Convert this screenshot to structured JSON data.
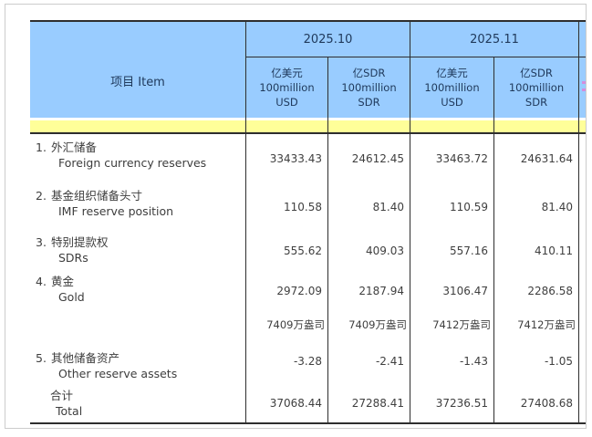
{
  "table": {
    "item_header": "项目  Item",
    "periods": [
      "2025.10",
      "2025.11"
    ],
    "units": {
      "usd_zh": "亿美元",
      "usd_scale": "100million",
      "usd_code": "USD",
      "sdr_zh": "亿SDR",
      "sdr_scale": "100million",
      "sdr_code": "SDR"
    },
    "rows": [
      {
        "no": "1.",
        "zh": "外汇储备",
        "en": "Foreign currency reserves",
        "v": [
          "33433.43",
          "24612.45",
          "33463.72",
          "24631.64"
        ]
      },
      {
        "no": "2.",
        "zh": "基金组织储备头寸",
        "en": "IMF reserve position",
        "v": [
          "110.58",
          "81.40",
          "110.59",
          "81.40"
        ]
      },
      {
        "no": "3.",
        "zh": "特别提款权",
        "en": "SDRs",
        "v": [
          "555.62",
          "409.03",
          "557.16",
          "410.11"
        ]
      },
      {
        "no": "4.",
        "zh": "黄金",
        "en": "Gold",
        "v": [
          "2972.09",
          "2187.94",
          "3106.47",
          "2286.58"
        ]
      },
      {
        "no": "",
        "zh": "",
        "en": "",
        "v": [
          "7409万盎司",
          "7409万盎司",
          "7412万盎司",
          "7412万盎司"
        ]
      },
      {
        "no": "5.",
        "zh": "其他储备资产",
        "en": "Other reserve assets",
        "v": [
          "-3.28",
          "-2.41",
          "-1.43",
          "-1.05"
        ]
      },
      {
        "no": "",
        "zh": "合计",
        "en": "Total",
        "v": [
          "37068.44",
          "27288.41",
          "37236.51",
          "27408.68"
        ]
      }
    ]
  },
  "colors": {
    "header_blue": "#99CCFF",
    "band_yellow": "#FFFF99",
    "border_dark": "#2e2e2e",
    "frame_gray": "#cccccc",
    "header_text": "#203a5c",
    "body_text": "#3f3f3f"
  }
}
